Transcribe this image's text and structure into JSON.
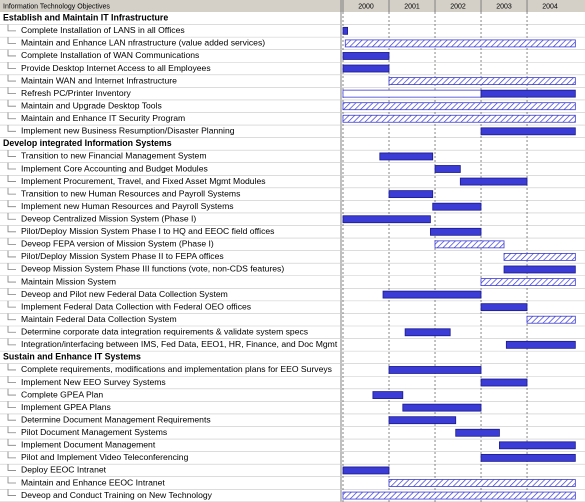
{
  "chart_data": {
    "type": "gantt",
    "title": "Information Technology Objectives",
    "xlim": [
      2000,
      2005.26
    ],
    "xticks": [
      2000,
      2001,
      2002,
      2003,
      2004
    ],
    "grid": true,
    "colors": {
      "solid": "#3b3bd6",
      "hatched": "#3b3bd6",
      "outline": "#3b3bd6"
    },
    "rows": [
      {
        "label": "Establish and Maintain IT Infrastructure",
        "group": true
      },
      {
        "label": "Complete Installation of LANS in all Offices",
        "bars": [
          {
            "start": 2000,
            "end": 2000.1,
            "style": "solid"
          }
        ]
      },
      {
        "label": "Maintain and Enhance LAN nfrastructure (value added services)",
        "bars": [
          {
            "start": 2000.05,
            "end": 2005.05,
            "style": "hatched"
          }
        ]
      },
      {
        "label": "Complete Installation of WAN Communications",
        "bars": [
          {
            "start": 2000,
            "end": 2001,
            "style": "solid"
          }
        ]
      },
      {
        "label": "Provide Desktop Internet Access to all Employees",
        "bars": [
          {
            "start": 2000,
            "end": 2001,
            "style": "solid"
          }
        ]
      },
      {
        "label": "Maintain WAN and Internet Infrastructure",
        "bars": [
          {
            "start": 2001,
            "end": 2005.05,
            "style": "hatched"
          }
        ]
      },
      {
        "label": "Refresh PC/Printer Inventory",
        "bars": [
          {
            "start": 2000,
            "end": 2003,
            "style": "outline"
          },
          {
            "start": 2003,
            "end": 2005.05,
            "style": "solid"
          }
        ]
      },
      {
        "label": "Maintain and Upgrade Desktop Tools",
        "bars": [
          {
            "start": 2000,
            "end": 2005.05,
            "style": "hatched"
          }
        ]
      },
      {
        "label": "Maintain and Enhance IT Security Program",
        "bars": [
          {
            "start": 2000,
            "end": 2005.05,
            "style": "hatched"
          }
        ]
      },
      {
        "label": "Implement new Business Resumption/Disaster Planning",
        "bars": [
          {
            "start": 2003,
            "end": 2005.05,
            "style": "solid"
          }
        ]
      },
      {
        "label": "Develop integrated Information Systems",
        "group": true
      },
      {
        "label": "Transition to new Financial Management System",
        "bars": [
          {
            "start": 2000.8,
            "end": 2001.95,
            "style": "solid"
          }
        ]
      },
      {
        "label": "Implement Core Accounting and Budget Modules",
        "bars": [
          {
            "start": 2002,
            "end": 2002.55,
            "style": "solid"
          }
        ]
      },
      {
        "label": "Implement Procurement, Travel, and Fixed Asset Mgmt Modules",
        "bars": [
          {
            "start": 2002.55,
            "end": 2004,
            "style": "solid"
          }
        ]
      },
      {
        "label": "Transition to new Human Resources and Payroll Systems",
        "bars": [
          {
            "start": 2001,
            "end": 2001.95,
            "style": "solid"
          }
        ]
      },
      {
        "label": "Implement new Human Resources and Payroll Systems",
        "bars": [
          {
            "start": 2001.95,
            "end": 2003,
            "style": "solid"
          }
        ]
      },
      {
        "label": "Deveop Centralized Mission System (Phase I)",
        "bars": [
          {
            "start": 2000,
            "end": 2001.9,
            "style": "solid"
          }
        ]
      },
      {
        "label": "Pilot/Deploy Mission System Phase I to HQ and EEOC field offices",
        "bars": [
          {
            "start": 2001.9,
            "end": 2003,
            "style": "solid"
          }
        ]
      },
      {
        "label": "Deveop FEPA version of Mission System (Phase I)",
        "bars": [
          {
            "start": 2002,
            "end": 2003.5,
            "style": "hatched"
          }
        ]
      },
      {
        "label": "Pilot/Deploy Mission System Phase II to FEPA offices",
        "bars": [
          {
            "start": 2003.5,
            "end": 2005.05,
            "style": "hatched"
          }
        ]
      },
      {
        "label": "Deveop Mission System Phase III functions (vote, non-CDS features)",
        "bars": [
          {
            "start": 2003.5,
            "end": 2005.05,
            "style": "solid"
          }
        ]
      },
      {
        "label": "Maintain Mission System",
        "bars": [
          {
            "start": 2003,
            "end": 2005.05,
            "style": "hatched"
          }
        ]
      },
      {
        "label": "Deveop and Pilot new Federal Data Collection System",
        "bars": [
          {
            "start": 2000.87,
            "end": 2003,
            "style": "solid"
          }
        ]
      },
      {
        "label": "Implement Federal Data Collection with Federal OEO offices",
        "bars": [
          {
            "start": 2003,
            "end": 2004,
            "style": "solid"
          }
        ]
      },
      {
        "label": "Maintain Federal Data Collection System",
        "bars": [
          {
            "start": 2004,
            "end": 2005.05,
            "style": "hatched"
          }
        ]
      },
      {
        "label": "Determine corporate data integration requirements & validate system specs",
        "bars": [
          {
            "start": 2001.35,
            "end": 2002.33,
            "style": "solid"
          }
        ]
      },
      {
        "label": "Integration/interfacing between IMS, Fed Data, EEO1, HR, Finance, and Doc Mgmt",
        "bars": [
          {
            "start": 2003.55,
            "end": 2005.05,
            "style": "solid"
          }
        ]
      },
      {
        "label": "Sustain and Enhance IT Systems",
        "group": true
      },
      {
        "label": "Complete requirements, modifications and implementation plans for EEO Surveys",
        "bars": [
          {
            "start": 2001,
            "end": 2003,
            "style": "solid"
          }
        ]
      },
      {
        "label": "Implement New EEO Survey Systems",
        "bars": [
          {
            "start": 2003,
            "end": 2004,
            "style": "solid"
          }
        ]
      },
      {
        "label": "Complete GPEA Plan",
        "bars": [
          {
            "start": 2000.65,
            "end": 2001.3,
            "style": "solid"
          }
        ]
      },
      {
        "label": "Implement GPEA Plans",
        "bars": [
          {
            "start": 2001.3,
            "end": 2003,
            "style": "solid"
          }
        ]
      },
      {
        "label": "Determine Document Management Requirements",
        "bars": [
          {
            "start": 2001,
            "end": 2002.45,
            "style": "solid"
          }
        ]
      },
      {
        "label": "Pilot Document Management Systems",
        "bars": [
          {
            "start": 2002.45,
            "end": 2003.4,
            "style": "solid"
          }
        ]
      },
      {
        "label": "Implement Document Management",
        "bars": [
          {
            "start": 2003.4,
            "end": 2005.05,
            "style": "solid"
          }
        ]
      },
      {
        "label": "Pilot and Implement Video Teleconferencing",
        "bars": [
          {
            "start": 2003,
            "end": 2005.05,
            "style": "solid"
          }
        ]
      },
      {
        "label": "Deploy EEOC Intranet",
        "bars": [
          {
            "start": 2000,
            "end": 2001,
            "style": "solid"
          }
        ]
      },
      {
        "label": "Maintain and Enhance EEOC Intranet",
        "bars": [
          {
            "start": 2001,
            "end": 2005.05,
            "style": "hatched"
          }
        ]
      },
      {
        "label": "Deveop and Conduct Training on New Technology",
        "bars": [
          {
            "start": 2000,
            "end": 2005.05,
            "style": "hatched"
          }
        ]
      }
    ]
  }
}
